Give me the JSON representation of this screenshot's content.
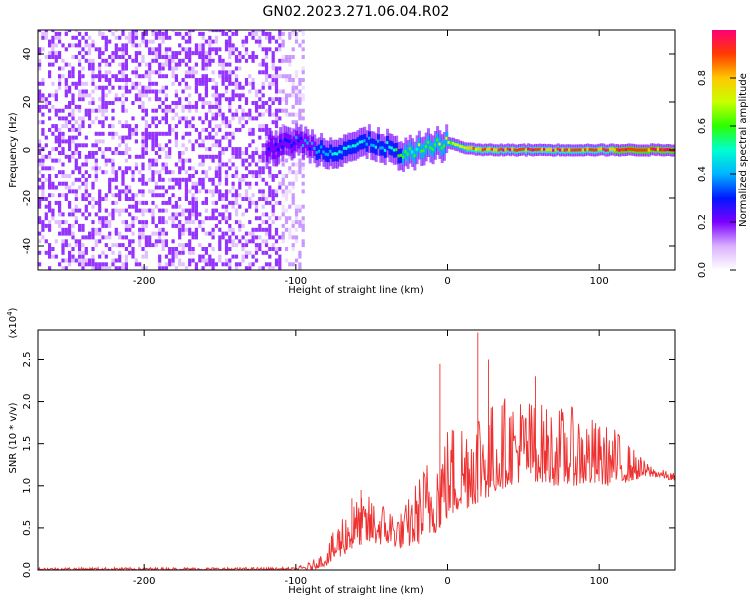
{
  "title": "GN02.2023.271.06.04.R02",
  "chart_data": [
    {
      "type": "heatmap",
      "xlabel": "Height of straight line (km)",
      "ylabel": "Frequency (Hz)",
      "xlim": [
        -270,
        150
      ],
      "ylim": [
        -50,
        50
      ],
      "xticks": [
        -200,
        -100,
        0,
        100
      ],
      "yticks": [
        -40,
        -20,
        0,
        20,
        40
      ],
      "colorbar": {
        "label": "Normalized spectral amplitude",
        "range": [
          0,
          1
        ],
        "ticks": [
          0.0,
          0.2,
          0.4,
          0.6,
          0.8
        ],
        "colors": [
          "#ffffff",
          "#d9b0ff",
          "#7a00ff",
          "#0018ff",
          "#00b4ff",
          "#00ffd0",
          "#2cff00",
          "#c8ff00",
          "#ffc800",
          "#ff3a00",
          "#ff0078"
        ]
      },
      "features": {
        "noise_region_x": [
          -270,
          -100
        ],
        "noise_amplitude": 0.15,
        "signal_trace": {
          "x": [
            -120,
            -100,
            -80,
            -60,
            -50,
            -40,
            -30,
            -20,
            -10,
            0,
            10,
            20,
            40,
            60,
            80,
            100,
            120,
            150
          ],
          "y": [
            0,
            4,
            -1,
            2,
            3,
            1,
            -3,
            0,
            2,
            3,
            1,
            0,
            0,
            0,
            0,
            0,
            0,
            0
          ],
          "amplitude": [
            0.2,
            0.3,
            0.4,
            0.45,
            0.4,
            0.5,
            0.55,
            0.6,
            0.6,
            0.65,
            0.7,
            0.85,
            0.9,
            0.9,
            0.9,
            0.9,
            0.92,
            0.95
          ]
        }
      }
    },
    {
      "type": "line",
      "xlabel": "Height of straight line (km)",
      "ylabel": "SNR (10 * v/v)",
      "ylabel_exponent": "(x10",
      "ylabel_exponent_power": "4",
      "ylabel_exponent_close": ")",
      "xlim": [
        -270,
        150
      ],
      "ylim": [
        0,
        2.85
      ],
      "xticks": [
        -200,
        -100,
        0,
        100
      ],
      "yticks": [
        "0.0",
        "0.5",
        "1.0",
        "1.5",
        "2.0",
        "2.5"
      ],
      "ytick_values": [
        0.0,
        0.5,
        1.0,
        1.5,
        2.0,
        2.5
      ],
      "series": [
        {
          "color": "#ee3030",
          "envelope": {
            "x": [
              -270,
              -200,
              -100,
              -90,
              -80,
              -70,
              -60,
              -50,
              -40,
              -30,
              -20,
              -10,
              0,
              10,
              20,
              30,
              40,
              50,
              60,
              70,
              80,
              90,
              100,
              110,
              120,
              130,
              140,
              150
            ],
            "low": [
              0.0,
              0.0,
              0.0,
              0.0,
              0.05,
              0.15,
              0.3,
              0.3,
              0.3,
              0.25,
              0.3,
              0.4,
              0.6,
              0.7,
              0.8,
              0.9,
              1.0,
              1.05,
              1.05,
              1.0,
              1.0,
              1.0,
              1.0,
              1.0,
              1.05,
              1.1,
              1.1,
              1.05
            ],
            "high": [
              0.03,
              0.03,
              0.03,
              0.1,
              0.25,
              0.7,
              0.85,
              0.9,
              0.8,
              0.7,
              1.1,
              1.5,
              1.75,
              1.9,
              2.1,
              2.0,
              2.1,
              2.1,
              2.0,
              1.95,
              1.95,
              1.9,
              1.75,
              1.7,
              1.5,
              1.3,
              1.2,
              1.15
            ]
          },
          "peaks": [
            {
              "x": 20,
              "y": 2.82
            },
            {
              "x": -5,
              "y": 2.45
            },
            {
              "x": 27,
              "y": 2.5
            },
            {
              "x": 58,
              "y": 2.3
            },
            {
              "x": -57,
              "y": 0.95
            },
            {
              "x": -63,
              "y": 0.85
            }
          ]
        }
      ]
    }
  ]
}
